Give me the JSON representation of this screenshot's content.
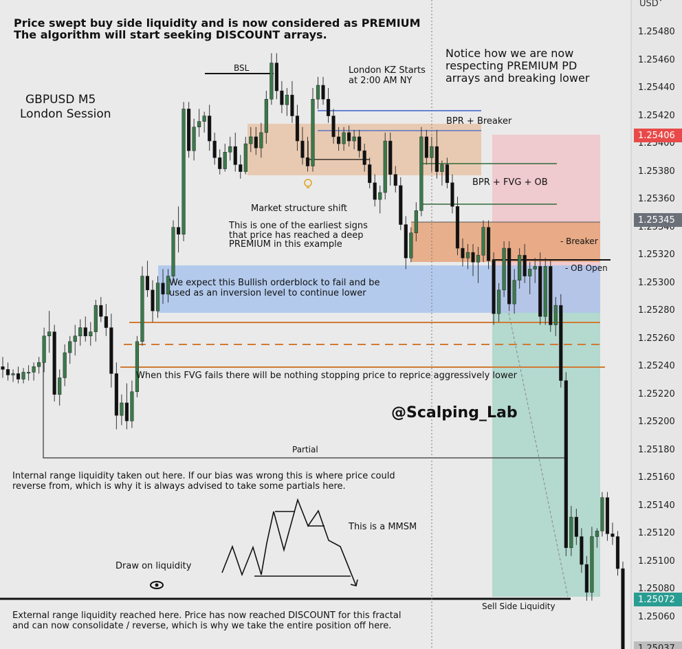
{
  "header": {
    "title_line1": "Price swept buy side liquidity and is now considered as PREMIUM",
    "title_line2": "The algorithm will start seeking DISCOUNT arrays.",
    "symbol": "GBPUSD M5",
    "session": "London Session",
    "notice": "Notice how we are now\nrespecting PREMIUM PD\narrays and breaking lower",
    "currency_label": "USD"
  },
  "annotations": {
    "bsl": "BSL",
    "london_kz": "London KZ Starts\nat 2:00 AM NY",
    "bpr_breaker": "BPR + Breaker",
    "bpr_fvg_ob": "BPR + FVG + OB",
    "mss_title": "Market structure shift",
    "mss_body": "This is one of the earliest signs\nthat price has reached a deep\nPREMIUM in this example",
    "breaker": "- Breaker",
    "ob_open": "- OB Open",
    "orderblock": "We expect this Bullish orderblock to fail and be\nused as an inversion level to continue lower",
    "fvg": "When this FVG fails there will be nothing stopping price to reprice aggressively lower",
    "watermark": "@Scalping_Lab",
    "partial": "Partial",
    "internal": "Internal range liquidity taken out here. If our bias was wrong this is where price could\nreverse from, which is why it is always advised to take some partials here.",
    "mmsm": "This is a MMSM",
    "draw_liquidity": "Draw on liquidity",
    "sell_side": "Sell Side Liquidity",
    "external": "External range liquidity reached here. Price has now reached DISCOUNT for this fractal\nand can now consolidate / reverse, which is why we take the entire position off here."
  },
  "price_tags": {
    "red": "1.25406",
    "gray": "1.25345",
    "teal": "1.25072",
    "bottom": "1.25037",
    "red_color": "#e84a4a",
    "gray_color": "#6b6f78",
    "teal_color": "#2a9d92"
  },
  "chart_data": {
    "type": "candlestick",
    "yaxis_ticks": [
      "1.25480",
      "1.25460",
      "1.25440",
      "1.25420",
      "1.25400",
      "1.25380",
      "1.25360",
      "1.25340",
      "1.25320",
      "1.25300",
      "1.25280",
      "1.25260",
      "1.25240",
      "1.25220",
      "1.25200",
      "1.25180",
      "1.25160",
      "1.25140",
      "1.25120",
      "1.25100",
      "1.25080",
      "1.25060"
    ],
    "ylim": [
      1.25028,
      1.25498
    ],
    "bull_color": "#3a7a4a",
    "bear_color": "#111111",
    "candles": [
      [
        1.2524,
        1.25247,
        1.25232,
        1.25238
      ],
      [
        1.25238,
        1.25243,
        1.2523,
        1.25234
      ],
      [
        1.25234,
        1.25238,
        1.25229,
        1.25235
      ],
      [
        1.25235,
        1.2524,
        1.25228,
        1.25231
      ],
      [
        1.25231,
        1.25239,
        1.25228,
        1.25236
      ],
      [
        1.25236,
        1.25241,
        1.2523,
        1.25236
      ],
      [
        1.25236,
        1.25243,
        1.2523,
        1.2524
      ],
      [
        1.2524,
        1.25247,
        1.25235,
        1.25243
      ],
      [
        1.25243,
        1.25268,
        1.25236,
        1.25262
      ],
      [
        1.25262,
        1.2528,
        1.2525,
        1.25265
      ],
      [
        1.25265,
        1.2527,
        1.25215,
        1.2522
      ],
      [
        1.2522,
        1.25238,
        1.25212,
        1.25232
      ],
      [
        1.25232,
        1.25256,
        1.25226,
        1.2525
      ],
      [
        1.2525,
        1.25262,
        1.25242,
        1.25258
      ],
      [
        1.25258,
        1.2527,
        1.25248,
        1.25262
      ],
      [
        1.25262,
        1.25274,
        1.25255,
        1.25268
      ],
      [
        1.25268,
        1.25276,
        1.25258,
        1.25262
      ],
      [
        1.25262,
        1.25272,
        1.25255,
        1.25265
      ],
      [
        1.25265,
        1.25288,
        1.25258,
        1.25284
      ],
      [
        1.25284,
        1.2529,
        1.25272,
        1.25276
      ],
      [
        1.25276,
        1.25285,
        1.25262,
        1.25268
      ],
      [
        1.25268,
        1.25278,
        1.25225,
        1.25235
      ],
      [
        1.25235,
        1.25243,
        1.25195,
        1.25205
      ],
      [
        1.25205,
        1.2522,
        1.25198,
        1.25214
      ],
      [
        1.25214,
        1.25228,
        1.25195,
        1.25201
      ],
      [
        1.25201,
        1.2523,
        1.25196,
        1.25222
      ],
      [
        1.25222,
        1.25262,
        1.25218,
        1.25258
      ],
      [
        1.25258,
        1.25312,
        1.25255,
        1.25305
      ],
      [
        1.25305,
        1.25316,
        1.2529,
        1.25295
      ],
      [
        1.25295,
        1.25302,
        1.25272,
        1.2528
      ],
      [
        1.2528,
        1.25305,
        1.25275,
        1.253
      ],
      [
        1.253,
        1.2531,
        1.25285,
        1.25292
      ],
      [
        1.25292,
        1.2531,
        1.25286,
        1.25305
      ],
      [
        1.25305,
        1.25345,
        1.253,
        1.2534
      ],
      [
        1.2534,
        1.25355,
        1.25322,
        1.25335
      ],
      [
        1.25335,
        1.2543,
        1.2533,
        1.25425
      ],
      [
        1.25425,
        1.2543,
        1.2539,
        1.25395
      ],
      [
        1.25395,
        1.25418,
        1.25388,
        1.25412
      ],
      [
        1.25412,
        1.25425,
        1.25405,
        1.25416
      ],
      [
        1.25416,
        1.25423,
        1.25408,
        1.2542
      ],
      [
        1.2542,
        1.25428,
        1.25395,
        1.25402
      ],
      [
        1.25402,
        1.25408,
        1.25385,
        1.2539
      ],
      [
        1.2539,
        1.25396,
        1.25378,
        1.25382
      ],
      [
        1.25382,
        1.254,
        1.2538,
        1.25394
      ],
      [
        1.25394,
        1.25405,
        1.25388,
        1.25398
      ],
      [
        1.25398,
        1.25408,
        1.2538,
        1.25385
      ],
      [
        1.25385,
        1.25392,
        1.25375,
        1.2538
      ],
      [
        1.2538,
        1.25405,
        1.25378,
        1.254
      ],
      [
        1.254,
        1.25412,
        1.25394,
        1.25405
      ],
      [
        1.25405,
        1.25412,
        1.25392,
        1.25397
      ],
      [
        1.25397,
        1.25415,
        1.2539,
        1.25408
      ],
      [
        1.25408,
        1.25438,
        1.254,
        1.25432
      ],
      [
        1.25432,
        1.25465,
        1.25428,
        1.25458
      ],
      [
        1.25458,
        1.25465,
        1.25432,
        1.25438
      ],
      [
        1.25438,
        1.25445,
        1.25422,
        1.25428
      ],
      [
        1.25428,
        1.2544,
        1.2542,
        1.25435
      ],
      [
        1.25435,
        1.25445,
        1.25415,
        1.2542
      ],
      [
        1.2542,
        1.25428,
        1.25395,
        1.25402
      ],
      [
        1.25402,
        1.25412,
        1.25385,
        1.2539
      ],
      [
        1.2539,
        1.25405,
        1.2538,
        1.25384
      ],
      [
        1.25384,
        1.2544,
        1.2538,
        1.25432
      ],
      [
        1.25432,
        1.25448,
        1.25425,
        1.25442
      ],
      [
        1.25442,
        1.25448,
        1.25428,
        1.25432
      ],
      [
        1.25432,
        1.2544,
        1.25415,
        1.2542
      ],
      [
        1.2542,
        1.25425,
        1.254,
        1.25405
      ],
      [
        1.25405,
        1.25412,
        1.25395,
        1.254
      ],
      [
        1.254,
        1.25412,
        1.25395,
        1.25408
      ],
      [
        1.25408,
        1.25413,
        1.25398,
        1.25402
      ],
      [
        1.25402,
        1.2541,
        1.25396,
        1.25405
      ],
      [
        1.25405,
        1.2541,
        1.2539,
        1.25395
      ],
      [
        1.25395,
        1.254,
        1.2538,
        1.25385
      ],
      [
        1.25385,
        1.2539,
        1.25368,
        1.25372
      ],
      [
        1.25372,
        1.25378,
        1.25355,
        1.2536
      ],
      [
        1.2536,
        1.2537,
        1.2535,
        1.25365
      ],
      [
        1.25365,
        1.25408,
        1.2536,
        1.25402
      ],
      [
        1.25402,
        1.25408,
        1.2537,
        1.25378
      ],
      [
        1.25378,
        1.25384,
        1.25365,
        1.2537
      ],
      [
        1.2537,
        1.25376,
        1.25338,
        1.25342
      ],
      [
        1.25342,
        1.25348,
        1.2531,
        1.25318
      ],
      [
        1.25318,
        1.2534,
        1.25315,
        1.25336
      ],
      [
        1.25336,
        1.25358,
        1.2533,
        1.25352
      ],
      [
        1.25352,
        1.25412,
        1.25348,
        1.25405
      ],
      [
        1.25405,
        1.2541,
        1.25385,
        1.2539
      ],
      [
        1.2539,
        1.25405,
        1.2538,
        1.25398
      ],
      [
        1.25398,
        1.2541,
        1.25375,
        1.2538
      ],
      [
        1.2538,
        1.25388,
        1.2537,
        1.25385
      ],
      [
        1.25385,
        1.2539,
        1.25368,
        1.25372
      ],
      [
        1.25372,
        1.25378,
        1.2535,
        1.25355
      ],
      [
        1.25355,
        1.25362,
        1.2532,
        1.25325
      ],
      [
        1.25325,
        1.25332,
        1.25312,
        1.25318
      ],
      [
        1.25318,
        1.25328,
        1.2531,
        1.25322
      ],
      [
        1.25322,
        1.25328,
        1.25305,
        1.25315
      ],
      [
        1.25315,
        1.25326,
        1.253,
        1.2532
      ],
      [
        1.2532,
        1.25345,
        1.25315,
        1.2534
      ],
      [
        1.2534,
        1.25345,
        1.2531,
        1.25316
      ],
      [
        1.25316,
        1.25322,
        1.2527,
        1.25278
      ],
      [
        1.25278,
        1.253,
        1.25272,
        1.25295
      ],
      [
        1.25295,
        1.2533,
        1.2529,
        1.25325
      ],
      [
        1.25325,
        1.2533,
        1.2528,
        1.25285
      ],
      [
        1.25285,
        1.2531,
        1.25278,
        1.25302
      ],
      [
        1.25302,
        1.25325,
        1.25296,
        1.2532
      ],
      [
        1.2532,
        1.25328,
        1.253,
        1.25305
      ],
      [
        1.25305,
        1.25315,
        1.25292,
        1.2531
      ],
      [
        1.2531,
        1.25318,
        1.253,
        1.25312
      ],
      [
        1.25312,
        1.25322,
        1.2527,
        1.25276
      ],
      [
        1.25276,
        1.25318,
        1.2527,
        1.25312
      ],
      [
        1.25312,
        1.25316,
        1.25265,
        1.2527
      ],
      [
        1.2527,
        1.2529,
        1.25262,
        1.25284
      ],
      [
        1.25284,
        1.25292,
        1.25225,
        1.2523
      ],
      [
        1.2523,
        1.25236,
        1.25104,
        1.2511
      ],
      [
        1.2511,
        1.2514,
        1.25104,
        1.25132
      ],
      [
        1.25132,
        1.25138,
        1.25112,
        1.25118
      ],
      [
        1.25118,
        1.25124,
        1.25092,
        1.25098
      ],
      [
        1.25098,
        1.25104,
        1.25072,
        1.25078
      ],
      [
        1.25078,
        1.25125,
        1.25072,
        1.25118
      ],
      [
        1.25118,
        1.25124,
        1.2511,
        1.25122
      ],
      [
        1.25122,
        1.2515,
        1.25118,
        1.25146
      ],
      [
        1.25146,
        1.2515,
        1.25115,
        1.2512
      ],
      [
        1.2512,
        1.25128,
        1.25112,
        1.25118
      ],
      [
        1.25118,
        1.25122,
        1.2509,
        1.25095
      ],
      [
        1.25095,
        1.251,
        1.2503,
        1.25035
      ]
    ]
  }
}
